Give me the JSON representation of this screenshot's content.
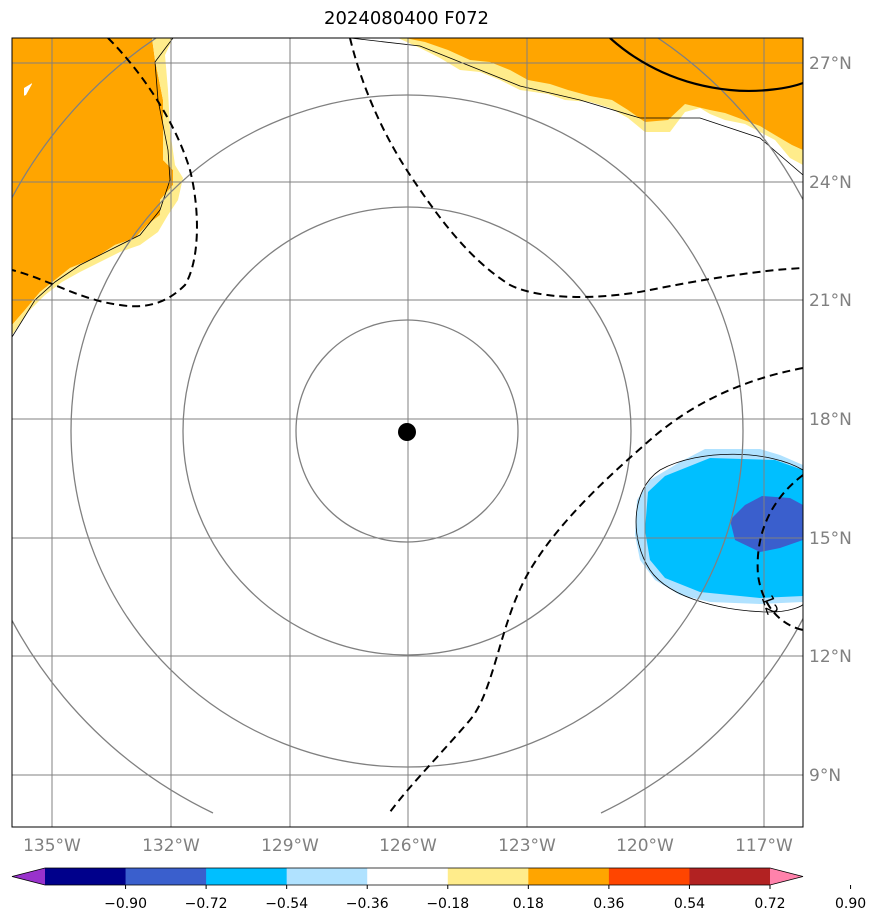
{
  "title": "2024080400 F072",
  "map": {
    "center_marker": {
      "lon": -126.0,
      "lat": 17.6
    },
    "lon_ticks": [
      "135°W",
      "132°W",
      "129°W",
      "126°W",
      "123°W",
      "120°W",
      "117°W"
    ],
    "lat_ticks": [
      "27°N",
      "24°N",
      "21°N",
      "18°N",
      "15°N",
      "12°N",
      "9°N"
    ],
    "range_rings": 4,
    "contour_label": "12",
    "colors": {
      "orange": "#ffa500",
      "light_yellow": "#ffec8b",
      "deep_sky_blue": "#00bfff",
      "royal_blue": "#3a5fcd",
      "light_blue": "#b0e2ff",
      "grid": "#808080"
    }
  },
  "colorbar": {
    "ticks": [
      "−0.90",
      "−0.72",
      "−0.54",
      "−0.36",
      "−0.18",
      "0.18",
      "0.36",
      "0.54",
      "0.72",
      "0.90"
    ],
    "bins": [
      "#9932cc",
      "#00008b",
      "#3a5fcd",
      "#00bfff",
      "#b0e2ff",
      "#ffffff",
      "#ffec8b",
      "#ffa500",
      "#ff4500",
      "#b22222",
      "#ff82ab"
    ]
  }
}
